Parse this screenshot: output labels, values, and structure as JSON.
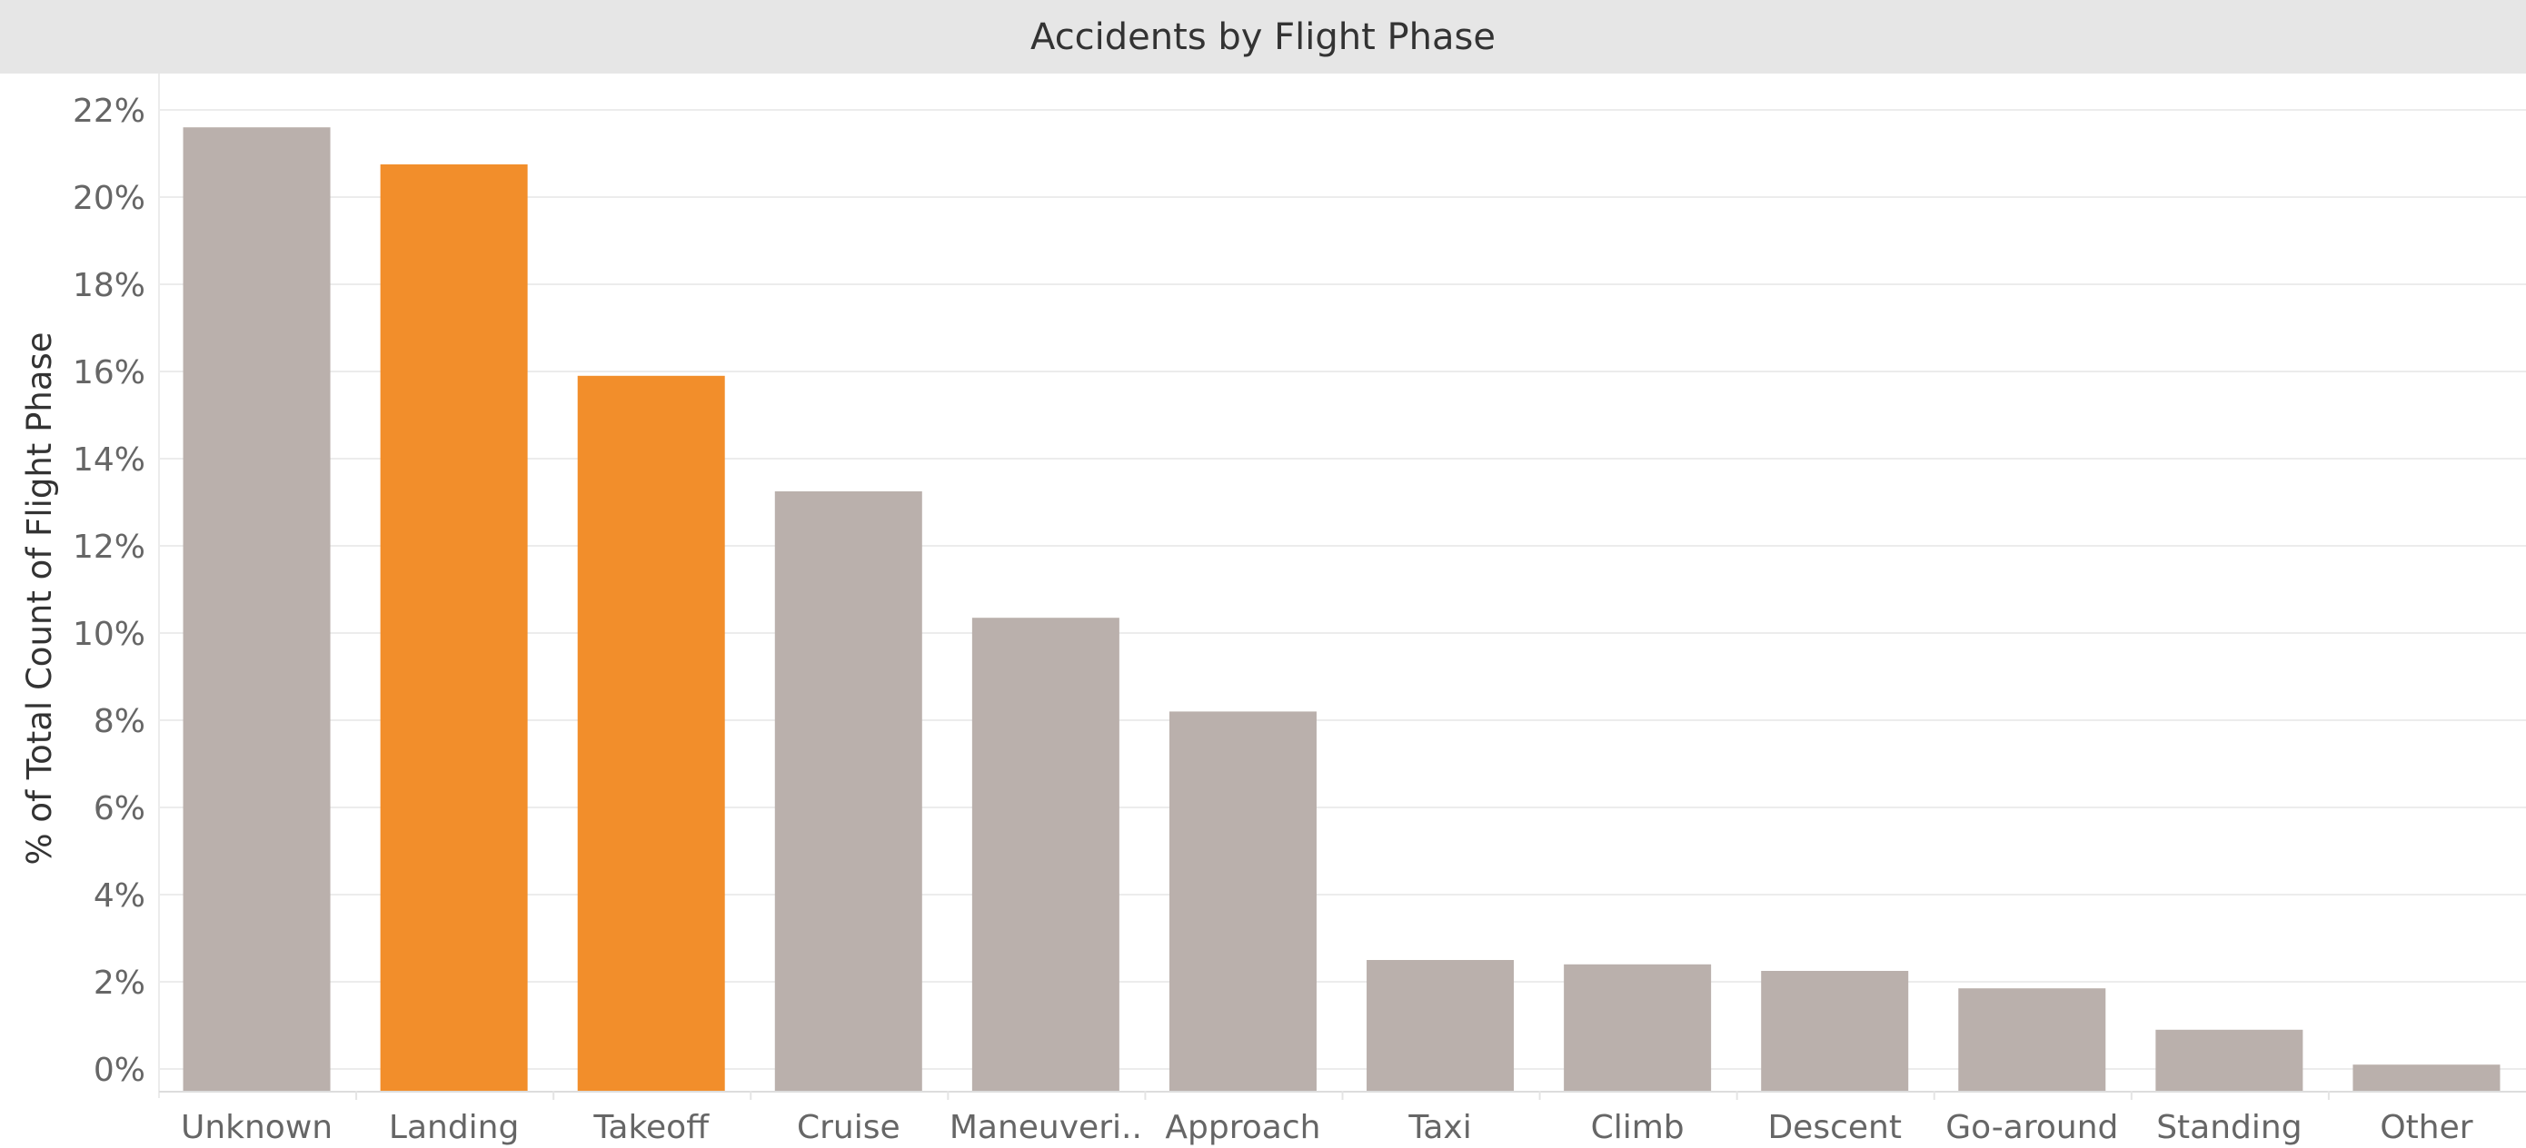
{
  "chart_data": {
    "type": "bar",
    "title": "Accidents by Flight Phase",
    "xlabel": "",
    "ylabel": "% of Total Count of Flight Phase",
    "categories": [
      "Unknown",
      "Landing",
      "Takeoff",
      "Cruise",
      "Maneuveri..",
      "Approach",
      "Taxi",
      "Climb",
      "Descent",
      "Go-around",
      "Standing",
      "Other"
    ],
    "values": [
      21.6,
      20.75,
      15.9,
      13.25,
      10.35,
      8.2,
      2.5,
      2.4,
      2.25,
      1.85,
      0.9,
      0.1
    ],
    "highlighted": [
      "Landing",
      "Takeoff"
    ],
    "yticks": [
      "0%",
      "2%",
      "4%",
      "6%",
      "8%",
      "10%",
      "12%",
      "14%",
      "16%",
      "18%",
      "20%",
      "22%"
    ],
    "ylim": [
      0,
      22
    ],
    "grid": true,
    "colors": {
      "default": "#bab0ac",
      "highlight": "#f28e2b",
      "grid": "#ececec",
      "axis_text": "#666666",
      "title_bg": "#e6e6e6"
    }
  }
}
